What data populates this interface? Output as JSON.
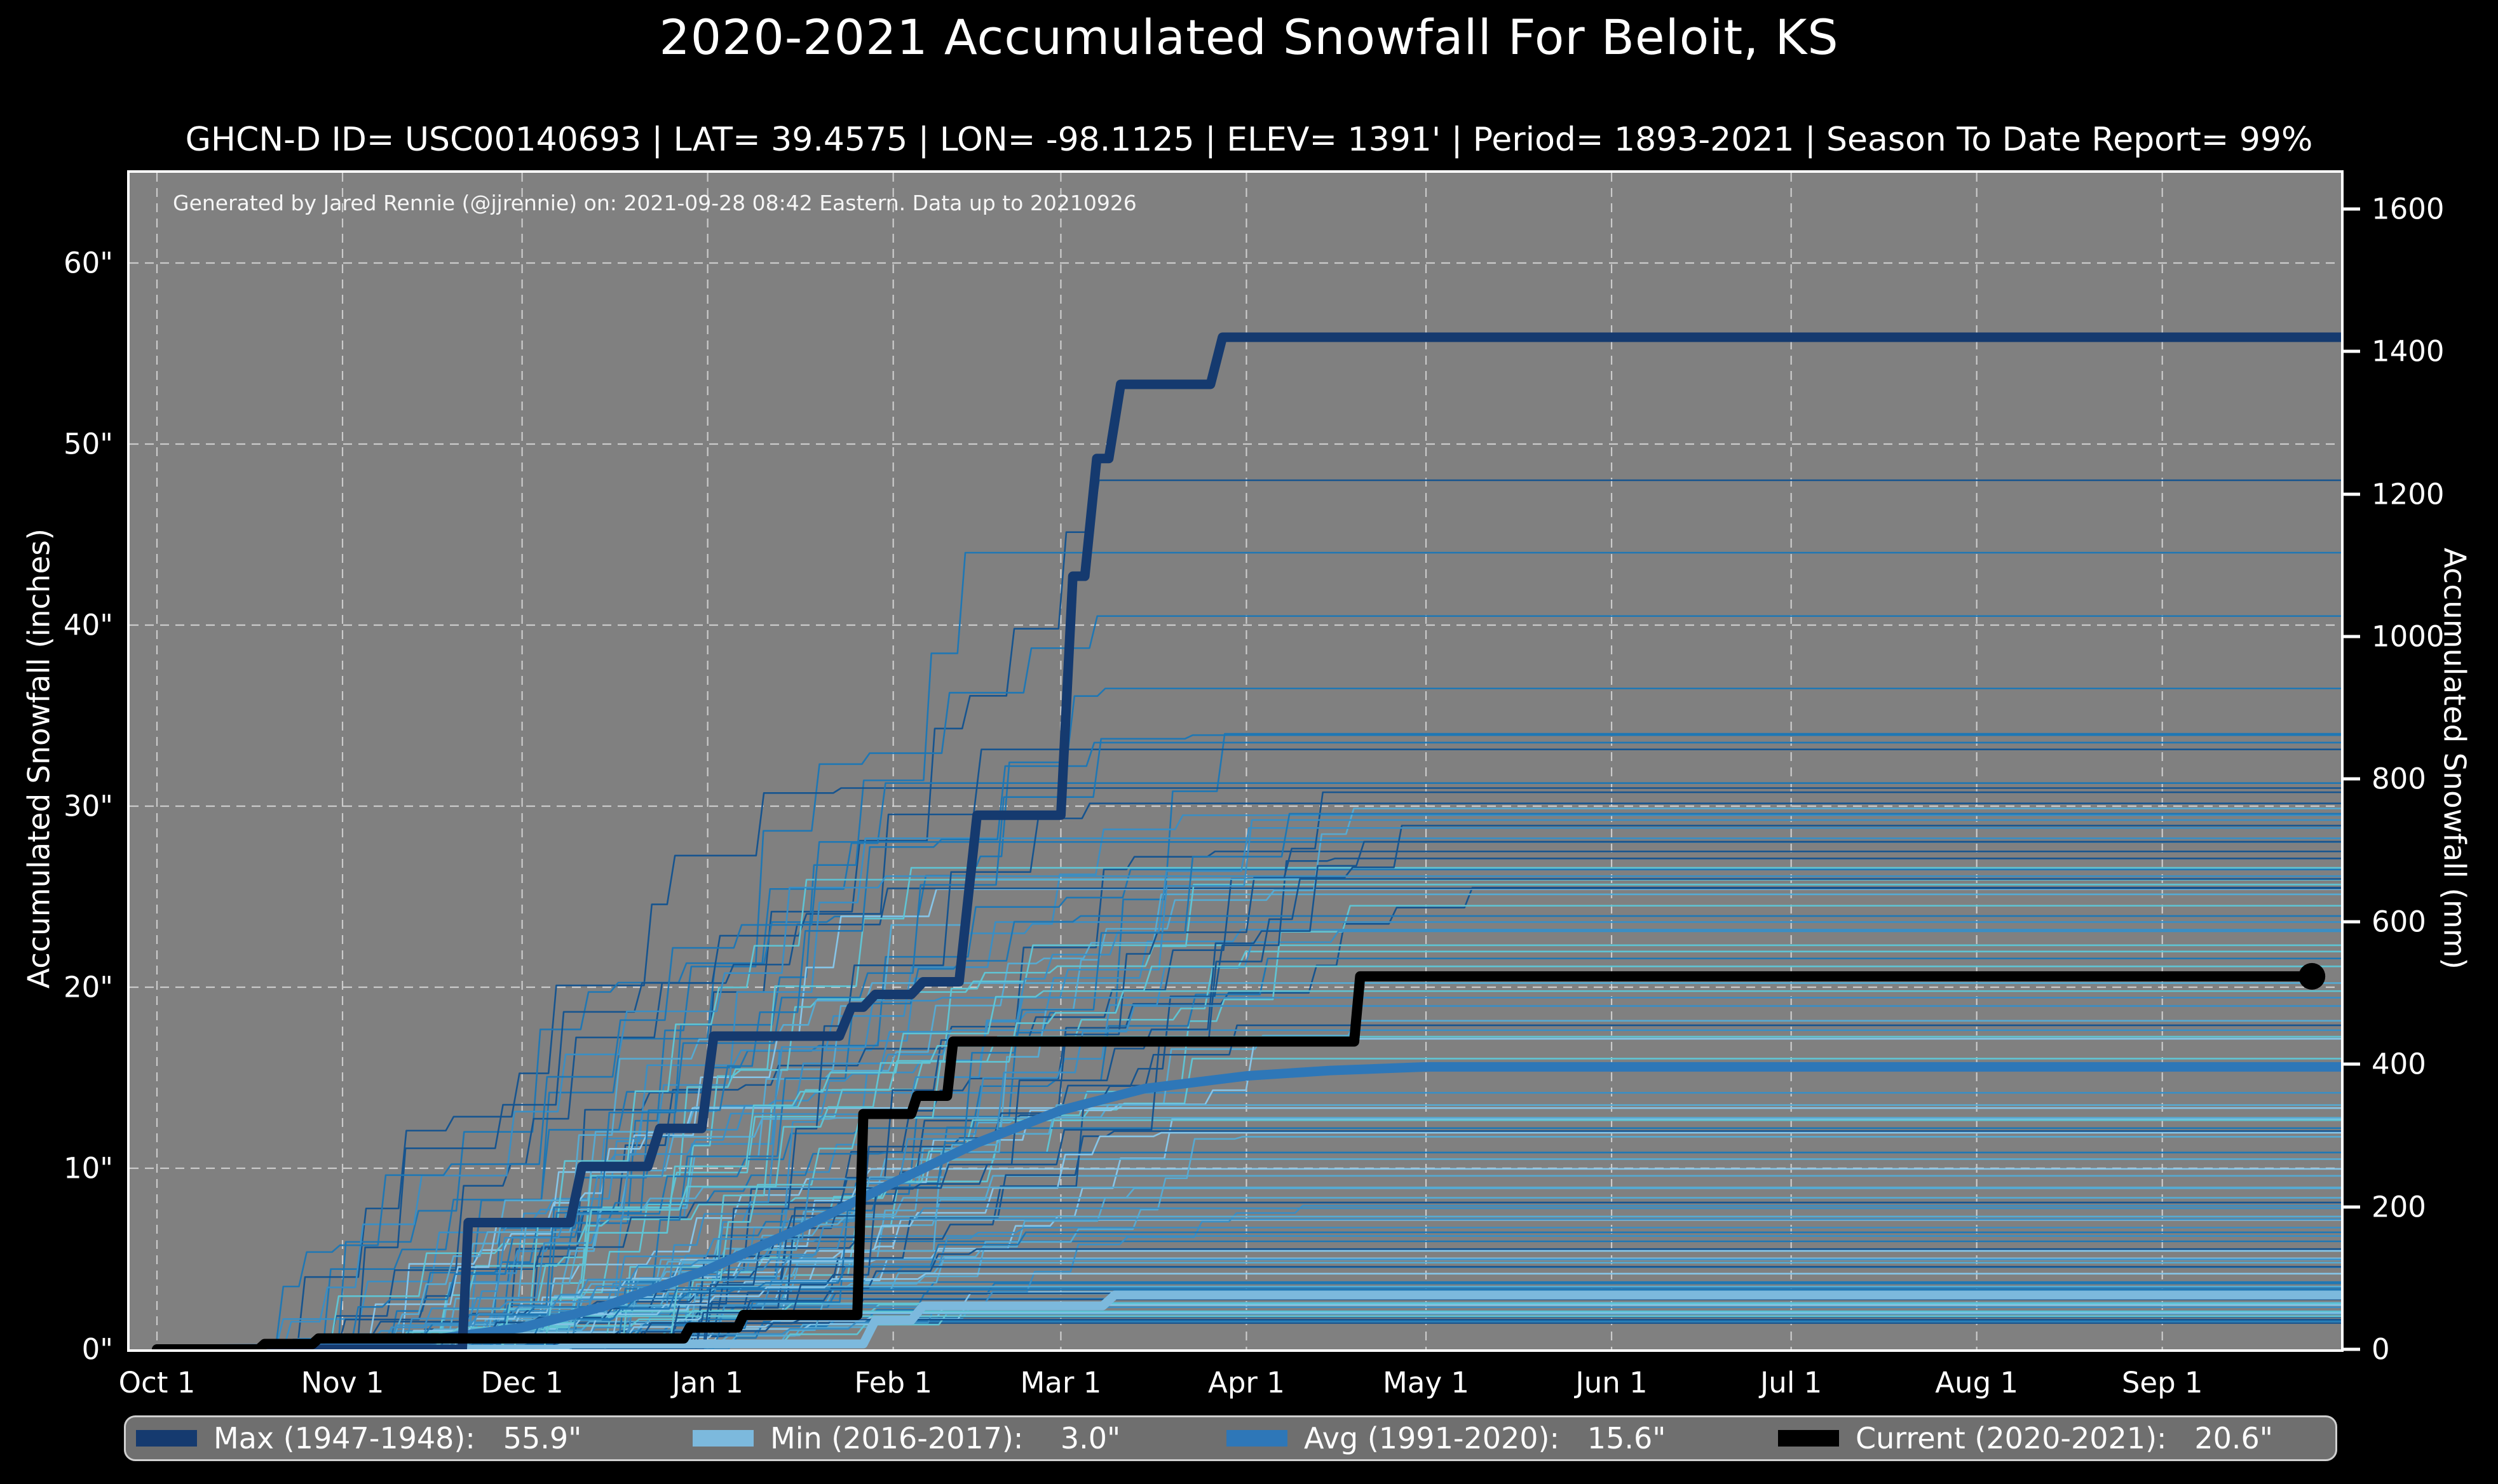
{
  "title": "2020-2021 Accumulated Snowfall For Beloit, KS",
  "subtitle": "GHCN-D ID= USC00140693 | LAT= 39.4575 | LON= -98.1125 | ELEV= 1391' | Period= 1893-2021 | Season To Date Report= 99%",
  "annotation": "Generated by Jared Rennie (@jjrennie) on: 2021-09-28 08:42 Eastern. Data up to 20210926",
  "legend": {
    "items": [
      {
        "label": "Max (1947-1948):   55.9\"",
        "color": "#153a6f",
        "x": 16
      },
      {
        "label": "Min (2016-2017):    3.0\"",
        "color": "#7cb9dd",
        "x": 892
      },
      {
        "label": "Avg (1991-2020):   15.6\"",
        "color": "#2e77b8",
        "x": 1732
      },
      {
        "label": "Current (2020-2021):   20.6\"",
        "color": "#000000",
        "x": 2600
      }
    ]
  },
  "axes": {
    "left_label": "Accumulated Snowfall (inches)",
    "right_label": "Accumulated Snowfall (mm)",
    "left_ticks": [
      {
        "value": 0,
        "label": "0\""
      },
      {
        "value": 10,
        "label": "10\""
      },
      {
        "value": 20,
        "label": "20\""
      },
      {
        "value": 30,
        "label": "30\""
      },
      {
        "value": 40,
        "label": "40\""
      },
      {
        "value": 50,
        "label": "50\""
      },
      {
        "value": 60,
        "label": "60\""
      }
    ],
    "right_ticks": [
      {
        "mm": 0,
        "label": "0"
      },
      {
        "mm": 200,
        "label": "200"
      },
      {
        "mm": 400,
        "label": "400"
      },
      {
        "mm": 600,
        "label": "600"
      },
      {
        "mm": 800,
        "label": "800"
      },
      {
        "mm": 1000,
        "label": "1000"
      },
      {
        "mm": 1200,
        "label": "1200"
      },
      {
        "mm": 1400,
        "label": "1400"
      },
      {
        "mm": 1600,
        "label": "1600"
      }
    ],
    "x_ticks": [
      {
        "day": 0,
        "label": "Oct 1"
      },
      {
        "day": 31,
        "label": "Nov 1"
      },
      {
        "day": 61,
        "label": "Dec 1"
      },
      {
        "day": 92,
        "label": "Jan 1"
      },
      {
        "day": 123,
        "label": "Feb 1"
      },
      {
        "day": 151,
        "label": "Mar 1"
      },
      {
        "day": 182,
        "label": "Apr 1"
      },
      {
        "day": 212,
        "label": "May 1"
      },
      {
        "day": 243,
        "label": "Jun 1"
      },
      {
        "day": 273,
        "label": "Jul 1"
      },
      {
        "day": 304,
        "label": "Aug 1"
      },
      {
        "day": 335,
        "label": "Sep 1"
      }
    ]
  },
  "chart_data": {
    "type": "line",
    "x_unit": "days since Oct 1",
    "x_range": [
      0,
      365
    ],
    "y_unit": "inches",
    "ylim": [
      0,
      65
    ],
    "right_axis_unit": "mm",
    "right_axis_max_tick": 1600,
    "grid": "dashed white; vertical at month starts, horizontal every 10 inches",
    "legend_position": "bottom, horizontal, outside plot",
    "series": [
      {
        "name": "Max (1947-1948)",
        "total": 55.9,
        "color": "#153a6f",
        "width": 15,
        "points": [
          [
            0,
            0
          ],
          [
            51,
            0
          ],
          [
            52,
            7.0
          ],
          [
            69,
            7.0
          ],
          [
            71,
            10.1
          ],
          [
            82,
            10.1
          ],
          [
            84,
            12.2
          ],
          [
            91,
            12.2
          ],
          [
            93,
            17.3
          ],
          [
            114,
            17.3
          ],
          [
            116,
            18.9
          ],
          [
            118,
            18.9
          ],
          [
            120,
            19.6
          ],
          [
            126,
            19.6
          ],
          [
            128,
            20.3
          ],
          [
            134,
            20.3
          ],
          [
            137,
            29.5
          ],
          [
            151,
            29.5
          ],
          [
            153,
            42.7
          ],
          [
            155,
            42.7
          ],
          [
            157,
            49.2
          ],
          [
            159,
            49.2
          ],
          [
            161,
            53.3
          ],
          [
            176,
            53.3
          ],
          [
            178,
            55.9
          ],
          [
            365,
            55.9
          ]
        ]
      },
      {
        "name": "Min (2016-2017)",
        "total": 3.0,
        "color": "#7cb9dd",
        "width": 14,
        "points": [
          [
            0,
            0
          ],
          [
            67,
            0
          ],
          [
            69,
            0.3
          ],
          [
            118,
            0.3
          ],
          [
            120,
            1.6
          ],
          [
            126,
            1.6
          ],
          [
            128,
            2.4
          ],
          [
            158,
            2.4
          ],
          [
            160,
            3.0
          ],
          [
            365,
            3.0
          ]
        ]
      },
      {
        "name": "Avg (1991-2020)",
        "total": 15.6,
        "color": "#2e77b8",
        "width": 15,
        "points": [
          [
            0,
            0
          ],
          [
            28,
            0.05
          ],
          [
            31,
            0.1
          ],
          [
            45,
            0.5
          ],
          [
            61,
            1.2
          ],
          [
            75,
            2.4
          ],
          [
            92,
            4.4
          ],
          [
            107,
            6.6
          ],
          [
            123,
            9.2
          ],
          [
            137,
            11.4
          ],
          [
            151,
            13.2
          ],
          [
            165,
            14.4
          ],
          [
            182,
            15.1
          ],
          [
            196,
            15.4
          ],
          [
            212,
            15.6
          ],
          [
            365,
            15.6
          ]
        ]
      },
      {
        "name": "Current (2020-2021)",
        "total": 20.6,
        "color": "#000000",
        "width": 16,
        "points": [
          [
            0,
            0
          ],
          [
            17,
            0
          ],
          [
            18,
            0.3
          ],
          [
            26,
            0.3
          ],
          [
            27,
            0.6
          ],
          [
            88,
            0.6
          ],
          [
            89,
            1.2
          ],
          [
            97,
            1.2
          ],
          [
            98,
            1.9
          ],
          [
            117,
            1.9
          ],
          [
            118,
            13.0
          ],
          [
            126,
            13.0
          ],
          [
            127,
            14.0
          ],
          [
            132,
            14.0
          ],
          [
            133,
            17.0
          ],
          [
            200,
            17.0
          ],
          [
            201,
            20.6
          ],
          [
            360,
            20.6
          ]
        ],
        "end_marker": {
          "day": 360,
          "value": 20.6,
          "radius": 21
        }
      }
    ],
    "ensemble": {
      "description": "thin background line per season 1893-2021 (accumulation curves)",
      "count": 118,
      "seed": 11,
      "start_day_range": [
        12,
        85
      ],
      "final_range": [
        1.5,
        48
      ],
      "notable_finals": [
        48,
        44,
        40.5,
        36.5,
        34,
        31,
        29.5,
        27.5,
        26.5,
        25.5,
        24.5,
        23.6
      ],
      "palette": [
        "#16548f",
        "#1f77b4",
        "#3a8ec4",
        "#56aad2",
        "#5fc4d4",
        "#86c5e8"
      ],
      "width": 2.6
    }
  },
  "colors": {
    "figure_bg": "#000000",
    "plot_bg": "#808080",
    "grid": "#d9d9d9",
    "spine": "#ffffff",
    "text": "#ffffff",
    "legend_bg": "#6f6f6f",
    "legend_border": "#d0d0d0"
  }
}
